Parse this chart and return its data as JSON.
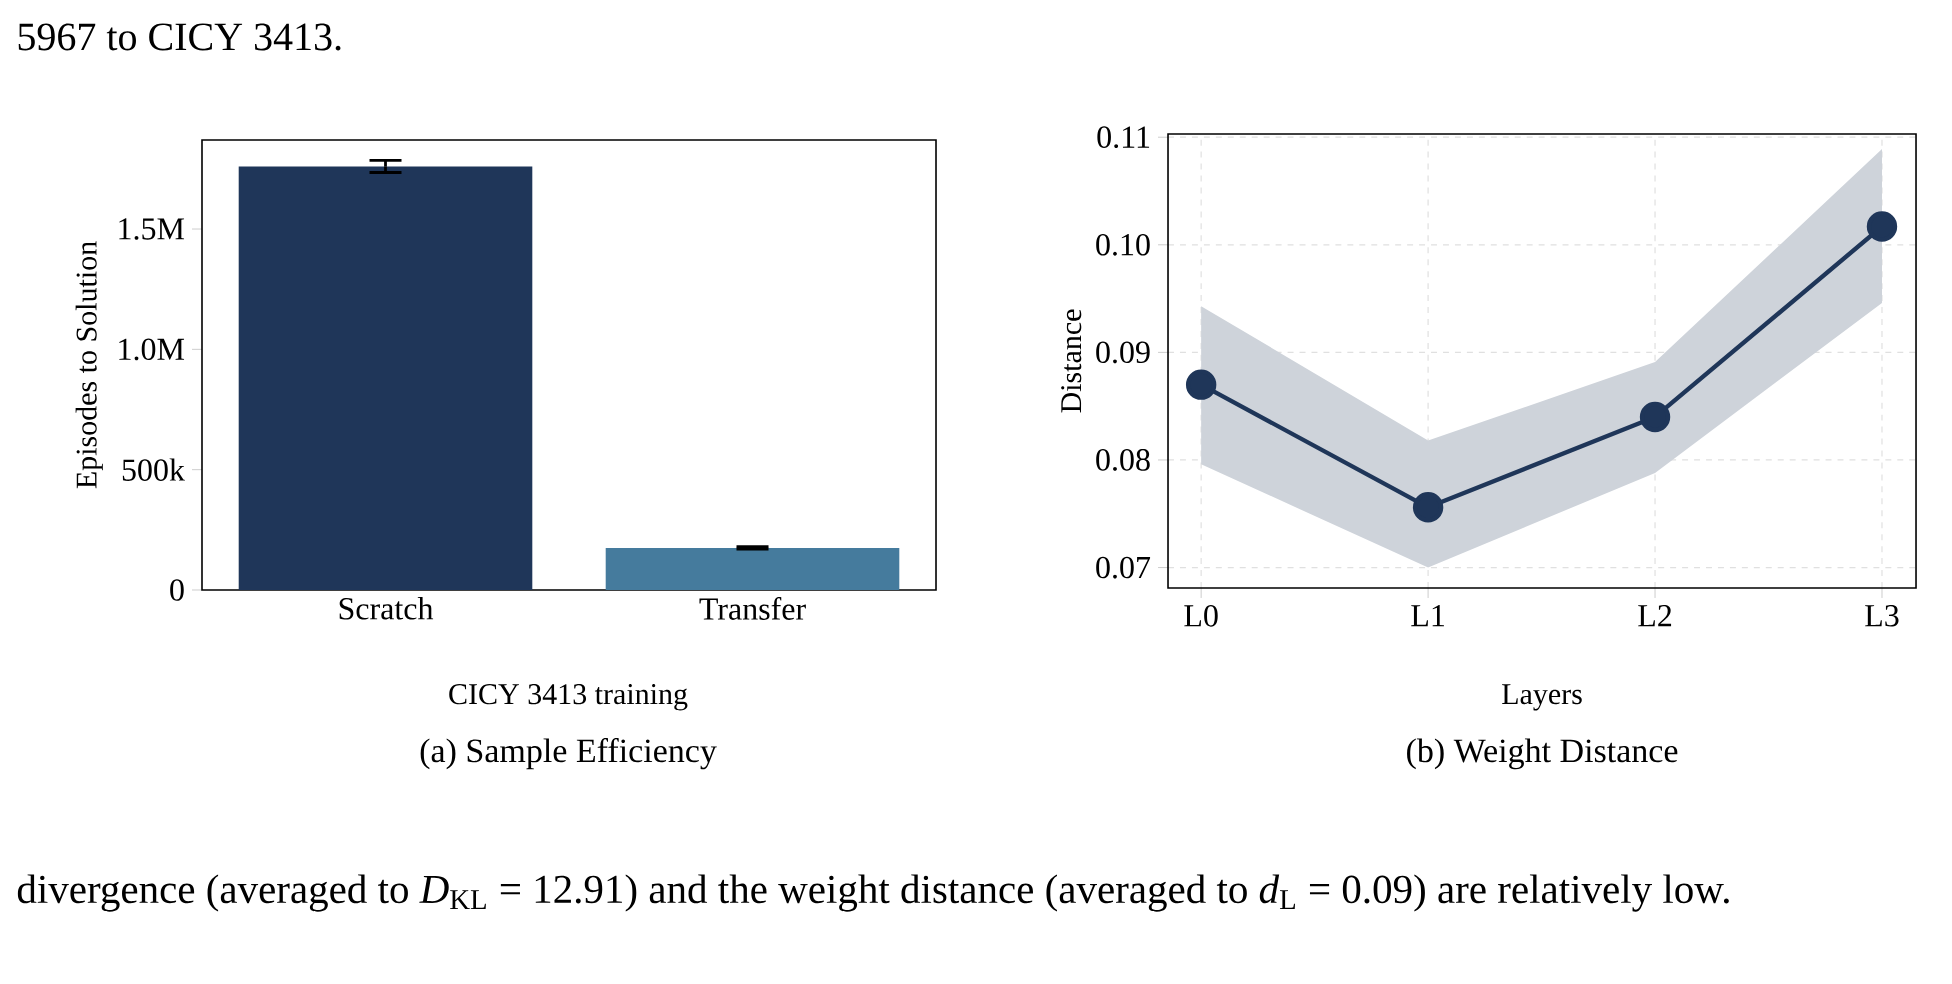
{
  "chart_data": [
    {
      "type": "bar",
      "title": "(a) Sample Efficiency",
      "xlabel": "CICY 3413 training",
      "ylabel": "Episodes to Solution",
      "categories": [
        "Scratch",
        "Transfer"
      ],
      "values": [
        1760000,
        175000
      ],
      "colors": [
        "#1f3659",
        "#457b9d"
      ],
      "errors": [
        25000,
        5000
      ],
      "ylim": [
        0,
        1870000
      ],
      "yticks": [
        0,
        {
          "value": 500000,
          "label": "500k"
        },
        {
          "value": 1000000,
          "label": "1.0M"
        },
        {
          "value": 1500000,
          "label": "1.5M"
        }
      ],
      "annotations": [
        "5967 to CICY 3413."
      ]
    },
    {
      "type": "line",
      "title": "(b) Weight Distance",
      "xlabel": "Layers",
      "ylabel": "Distance",
      "categories": [
        "L0",
        "L1",
        "L2",
        "L3"
      ],
      "series": [
        {
          "color": "#1f3659",
          "values": [
            0.087,
            0.0756,
            0.084,
            0.1017
          ],
          "lower": [
            0.0796,
            0.07,
            0.0788,
            0.0946
          ],
          "upper": [
            0.0943,
            0.0818,
            0.0891,
            0.1089
          ]
        }
      ],
      "ylim": [
        0.0681,
        0.1103
      ],
      "yticks": [
        0.07,
        0.08,
        0.09,
        {
          "value": 0.1,
          "label": "0.10"
        },
        0.11
      ],
      "grid": true,
      "marker": "circle",
      "line_style": "solid",
      "annotations": [
        "divergence (averaged to *D*$_{KL}$ = 12.91) and the weight distance (averaged to *d*$_{L}$ = 0.09) are relatively low."
      ]
    }
  ]
}
